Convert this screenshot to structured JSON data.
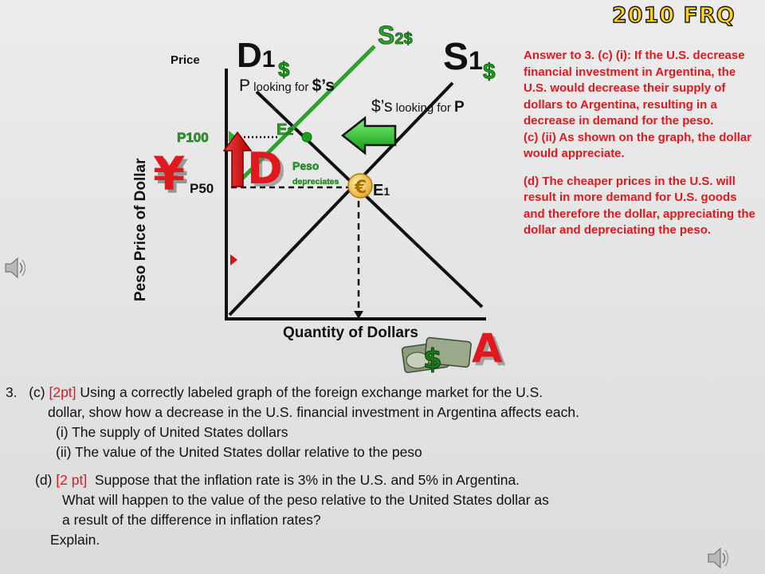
{
  "badge": {
    "text": "2010 FRQ"
  },
  "graph": {
    "y_axis_top_label": "Price",
    "y_axis_label": "Peso Price of Dollar",
    "x_axis_label": "Quantity of Dollars",
    "demand": {
      "letter": "D",
      "subscript": "1",
      "unit": "$"
    },
    "supply1": {
      "letter": "S",
      "subscript": "1",
      "unit": "$"
    },
    "supply2": {
      "letter": "S",
      "subscript": "2$"
    },
    "demand_note": {
      "prefix": "P",
      "text": " looking for ",
      "suffix": "$’s"
    },
    "supply_note": {
      "prefix": "$’s",
      "text": " looking for ",
      "suffix": "P"
    },
    "p100": "P100",
    "p50": "P50",
    "e2": {
      "letter": "E",
      "subscript": "2"
    },
    "e1": {
      "letter": "E",
      "subscript": "1"
    },
    "big_d": "D",
    "peso_note": {
      "line1": "Peso",
      "line2": "depreciates"
    },
    "yen_symbol": "¥",
    "big_a": "A",
    "dollar_symbol": "$",
    "euro_symbol": "€"
  },
  "answer": {
    "part_c": "Answer to 3. (c) (i): If the U.S. decrease financial investment in Argentina, the U.S. would decrease their supply of dollars to Argentina, resulting in a decrease in demand for the peso.",
    "part_c2": "(c) (ii) As shown on the graph, the dollar would appreciate.",
    "part_d": "(d) The cheaper prices in the U.S. will result in more demand for U.S. goods and therefore the dollar, appreciating the dollar and depreciating the peso."
  },
  "question": {
    "num": "3.",
    "c_label": "(c)",
    "c_points": "[2pt]",
    "c_text1": "Using a correctly labeled graph of the foreign exchange market for the U.S.",
    "c_text2": "dollar, show how a decrease in the U.S. financial investment in Argentina affects each.",
    "c_i": "(i) The supply of United States dollars",
    "c_ii": "(ii) The value of the United States dollar relative to the peso",
    "d_label": "(d)",
    "d_points": "[2 pt]",
    "d_text1": "Suppose that the inflation rate is 3% in the U.S. and 5% in Argentina.",
    "d_text2": "What will happen to the value of the peso relative to the United States dollar as",
    "d_text3": "a result of the difference in inflation rates?",
    "d_text4": "Explain."
  },
  "colors": {
    "answer": "#e0191e",
    "supply2": "#2fa02f",
    "arrow_green": "#22bb22",
    "arrow_red": "#d01515",
    "badge": "#ffd21a"
  },
  "icons": [
    "speaker-icon",
    "speaker-icon",
    "yen-icon",
    "euro-icon",
    "money-icon",
    "left-arrow-icon",
    "up-arrow-icon"
  ]
}
